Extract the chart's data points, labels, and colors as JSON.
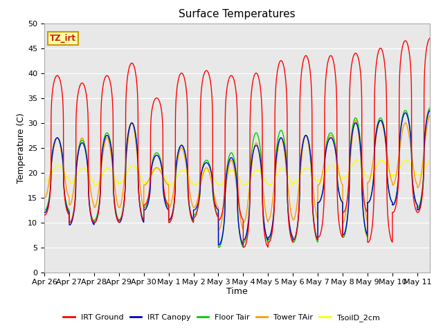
{
  "title": "Surface Temperatures",
  "xlabel": "Time",
  "ylabel": "Temperature (C)",
  "ylim": [
    0,
    50
  ],
  "xtick_labels": [
    "Apr 26",
    "Apr 27",
    "Apr 28",
    "Apr 29",
    "Apr 30",
    "May 1",
    "May 2",
    "May 3",
    "May 4",
    "May 5",
    "May 6",
    "May 7",
    "May 8",
    "May 9",
    "May 10",
    "May 11"
  ],
  "legend": [
    "IRT Ground",
    "IRT Canopy",
    "Floor Tair",
    "Tower TAir",
    "TsoilD_2cm"
  ],
  "colors": [
    "#ff0000",
    "#0000cc",
    "#00cc00",
    "#ff9900",
    "#ffff00"
  ],
  "plot_bg": "#e8e8e8",
  "annotation_text": "TZ_irt",
  "annotation_color": "#cc2200",
  "annotation_bg": "#ffffaa",
  "annotation_border": "#cc9900",
  "yticks": [
    0,
    5,
    10,
    15,
    20,
    25,
    30,
    35,
    40,
    45,
    50
  ],
  "irt_ground_peaks": [
    39.5,
    38.0,
    39.5,
    42.0,
    35.0,
    40.0,
    40.5,
    39.5,
    40.0,
    42.5,
    43.5,
    43.5,
    44.0,
    45.0,
    46.5,
    47.0
  ],
  "irt_ground_mins": [
    11.5,
    10.0,
    10.0,
    10.5,
    13.5,
    10.0,
    11.0,
    10.5,
    5.0,
    6.0,
    6.5,
    7.0,
    12.0,
    6.0,
    12.0,
    12.0
  ],
  "canopy_peaks": [
    27.0,
    26.0,
    27.5,
    30.0,
    23.5,
    25.5,
    22.0,
    23.0,
    25.5,
    27.0,
    27.5,
    27.0,
    30.0,
    30.5,
    32.0,
    32.5
  ],
  "canopy_mins": [
    12.0,
    9.5,
    10.0,
    10.0,
    12.5,
    10.5,
    12.5,
    5.5,
    6.5,
    7.0,
    6.5,
    14.0,
    7.5,
    14.0,
    13.5,
    12.5
  ],
  "floor_peaks": [
    27.0,
    26.5,
    28.0,
    30.0,
    24.0,
    25.5,
    22.5,
    24.0,
    28.0,
    28.5,
    27.5,
    28.0,
    31.0,
    31.0,
    32.5,
    33.0
  ],
  "floor_mins": [
    12.5,
    10.0,
    10.5,
    10.5,
    13.0,
    10.0,
    11.5,
    5.0,
    6.0,
    6.5,
    6.0,
    14.0,
    7.0,
    14.0,
    13.5,
    13.0
  ],
  "tower_peaks": [
    27.0,
    27.0,
    27.0,
    30.0,
    21.0,
    25.0,
    21.0,
    22.5,
    26.0,
    27.0,
    27.5,
    27.5,
    30.5,
    30.5,
    30.0,
    31.5
  ],
  "tower_mins": [
    15.0,
    13.5,
    13.0,
    13.0,
    17.5,
    13.0,
    13.0,
    8.5,
    10.0,
    10.5,
    10.5,
    17.5,
    10.0,
    18.0,
    17.5,
    17.0
  ],
  "soil_peaks": [
    21.5,
    21.0,
    21.0,
    21.5,
    21.0,
    20.5,
    20.5,
    20.5,
    20.5,
    21.0,
    21.0,
    21.5,
    22.5,
    22.5,
    22.5,
    22.5
  ],
  "soil_mins": [
    18.5,
    18.0,
    17.5,
    18.0,
    18.0,
    17.5,
    17.5,
    17.5,
    17.5,
    17.5,
    18.0,
    18.5,
    19.0,
    19.0,
    19.5,
    19.5
  ]
}
